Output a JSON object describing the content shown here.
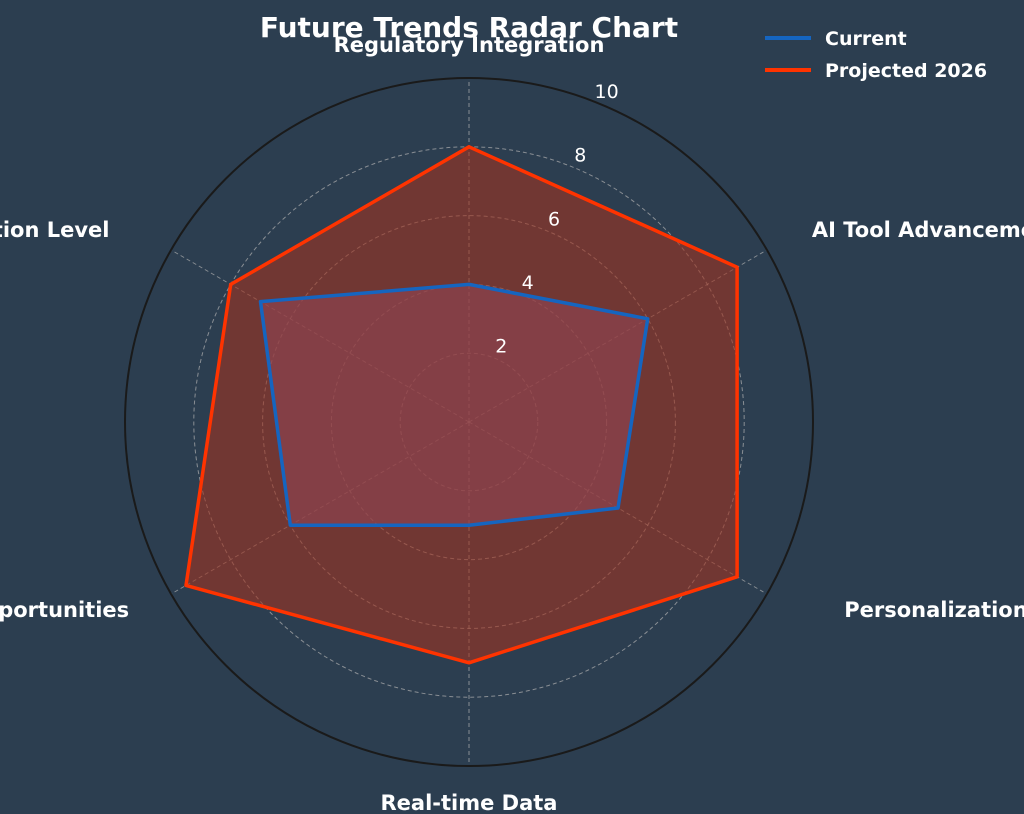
{
  "chart_data": {
    "type": "radar",
    "title": "Future Trends Radar Chart",
    "categories": [
      "Regulatory Integration",
      "AI Tool Advancement",
      "Personalization",
      "Real-time Data",
      "Market Opportunities",
      "Competition Level"
    ],
    "series": [
      {
        "name": "Current",
        "values": [
          4,
          6,
          5,
          3,
          6,
          7
        ],
        "color": "#1565c0",
        "fill": "#7a5fa0"
      },
      {
        "name": "Projected 2026",
        "values": [
          8,
          9,
          9,
          7,
          9.5,
          8
        ],
        "color": "#ff3300",
        "fill": "#a0331f"
      }
    ],
    "rlim": [
      0,
      10
    ],
    "ticks": [
      2,
      4,
      6,
      8,
      10
    ],
    "tick_labels": [
      "2",
      "4",
      "6",
      "8",
      "10"
    ],
    "grid": true,
    "legend": "top-right",
    "colors": {
      "background": "#2c3e50",
      "outer_ring": "#1a1a1a",
      "grid": "#b0b0b0"
    }
  }
}
